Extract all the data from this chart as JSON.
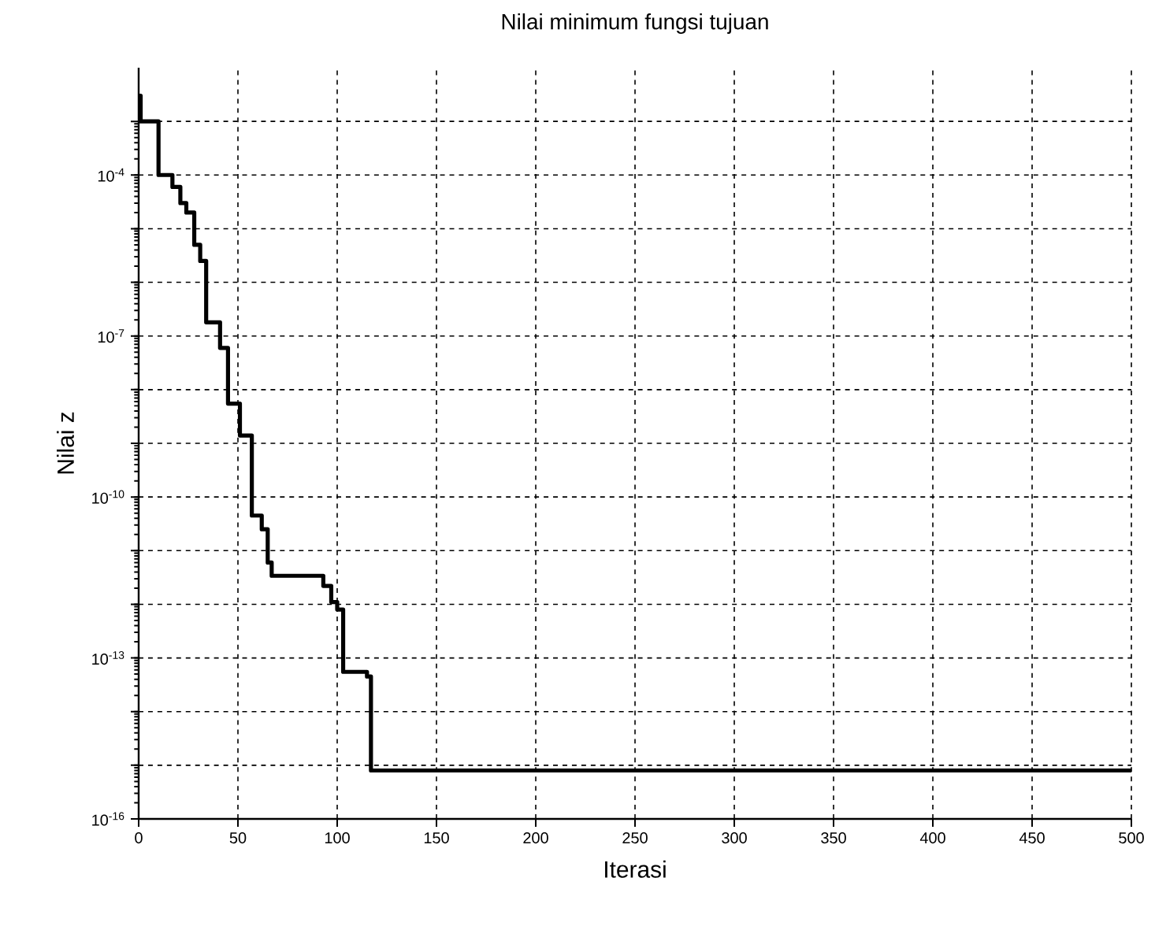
{
  "chart_data": {
    "type": "step",
    "title": "Nilai minimum fungsi tujuan",
    "xlabel": "Iterasi",
    "ylabel": "Nilai z",
    "log": "y",
    "grid": true,
    "marker": "none",
    "line_style": "solid",
    "xlim": [
      0,
      500
    ],
    "xticks": [
      0,
      50,
      100,
      150,
      200,
      250,
      300,
      350,
      400,
      450,
      500
    ],
    "ylim": [
      1e-16,
      0.01
    ],
    "yticks": [
      {
        "value": 1e-16,
        "label": "10$^{-16}$"
      },
      {
        "value": 1e-15,
        "label": null
      },
      {
        "value": 1e-14,
        "label": null
      },
      {
        "value": 1e-13,
        "label": "10$^{-13}$"
      },
      {
        "value": 1e-12,
        "label": null
      },
      {
        "value": 1e-11,
        "label": null
      },
      {
        "value": 1e-10,
        "label": "10$^{-10}$"
      },
      {
        "value": 1e-09,
        "label": null
      },
      {
        "value": 1e-08,
        "label": null
      },
      {
        "value": 1e-07,
        "label": "10$^{-7}$"
      },
      {
        "value": 1e-06,
        "label": null
      },
      {
        "value": 1e-05,
        "label": null
      },
      {
        "value": 0.0001,
        "label": "10$^{-4}$"
      },
      {
        "value": 0.001,
        "label": null
      }
    ],
    "series": [
      {
        "color": "#000000",
        "x": [
          0,
          1,
          10,
          17,
          21,
          24,
          28,
          31,
          34,
          41,
          45,
          51,
          57,
          62,
          65,
          67,
          93,
          97,
          100,
          103,
          115,
          117,
          500
        ],
        "values": [
          0.003,
          0.001,
          0.0001,
          6e-05,
          3e-05,
          2e-05,
          5e-06,
          2.5e-06,
          1.8e-07,
          6e-08,
          5.5e-09,
          1.4e-09,
          4.5e-11,
          2.5e-11,
          6e-12,
          3.4e-12,
          2.2e-12,
          1.1e-12,
          8e-13,
          5.5e-14,
          4.5e-14,
          8e-16,
          8e-16
        ]
      }
    ]
  }
}
